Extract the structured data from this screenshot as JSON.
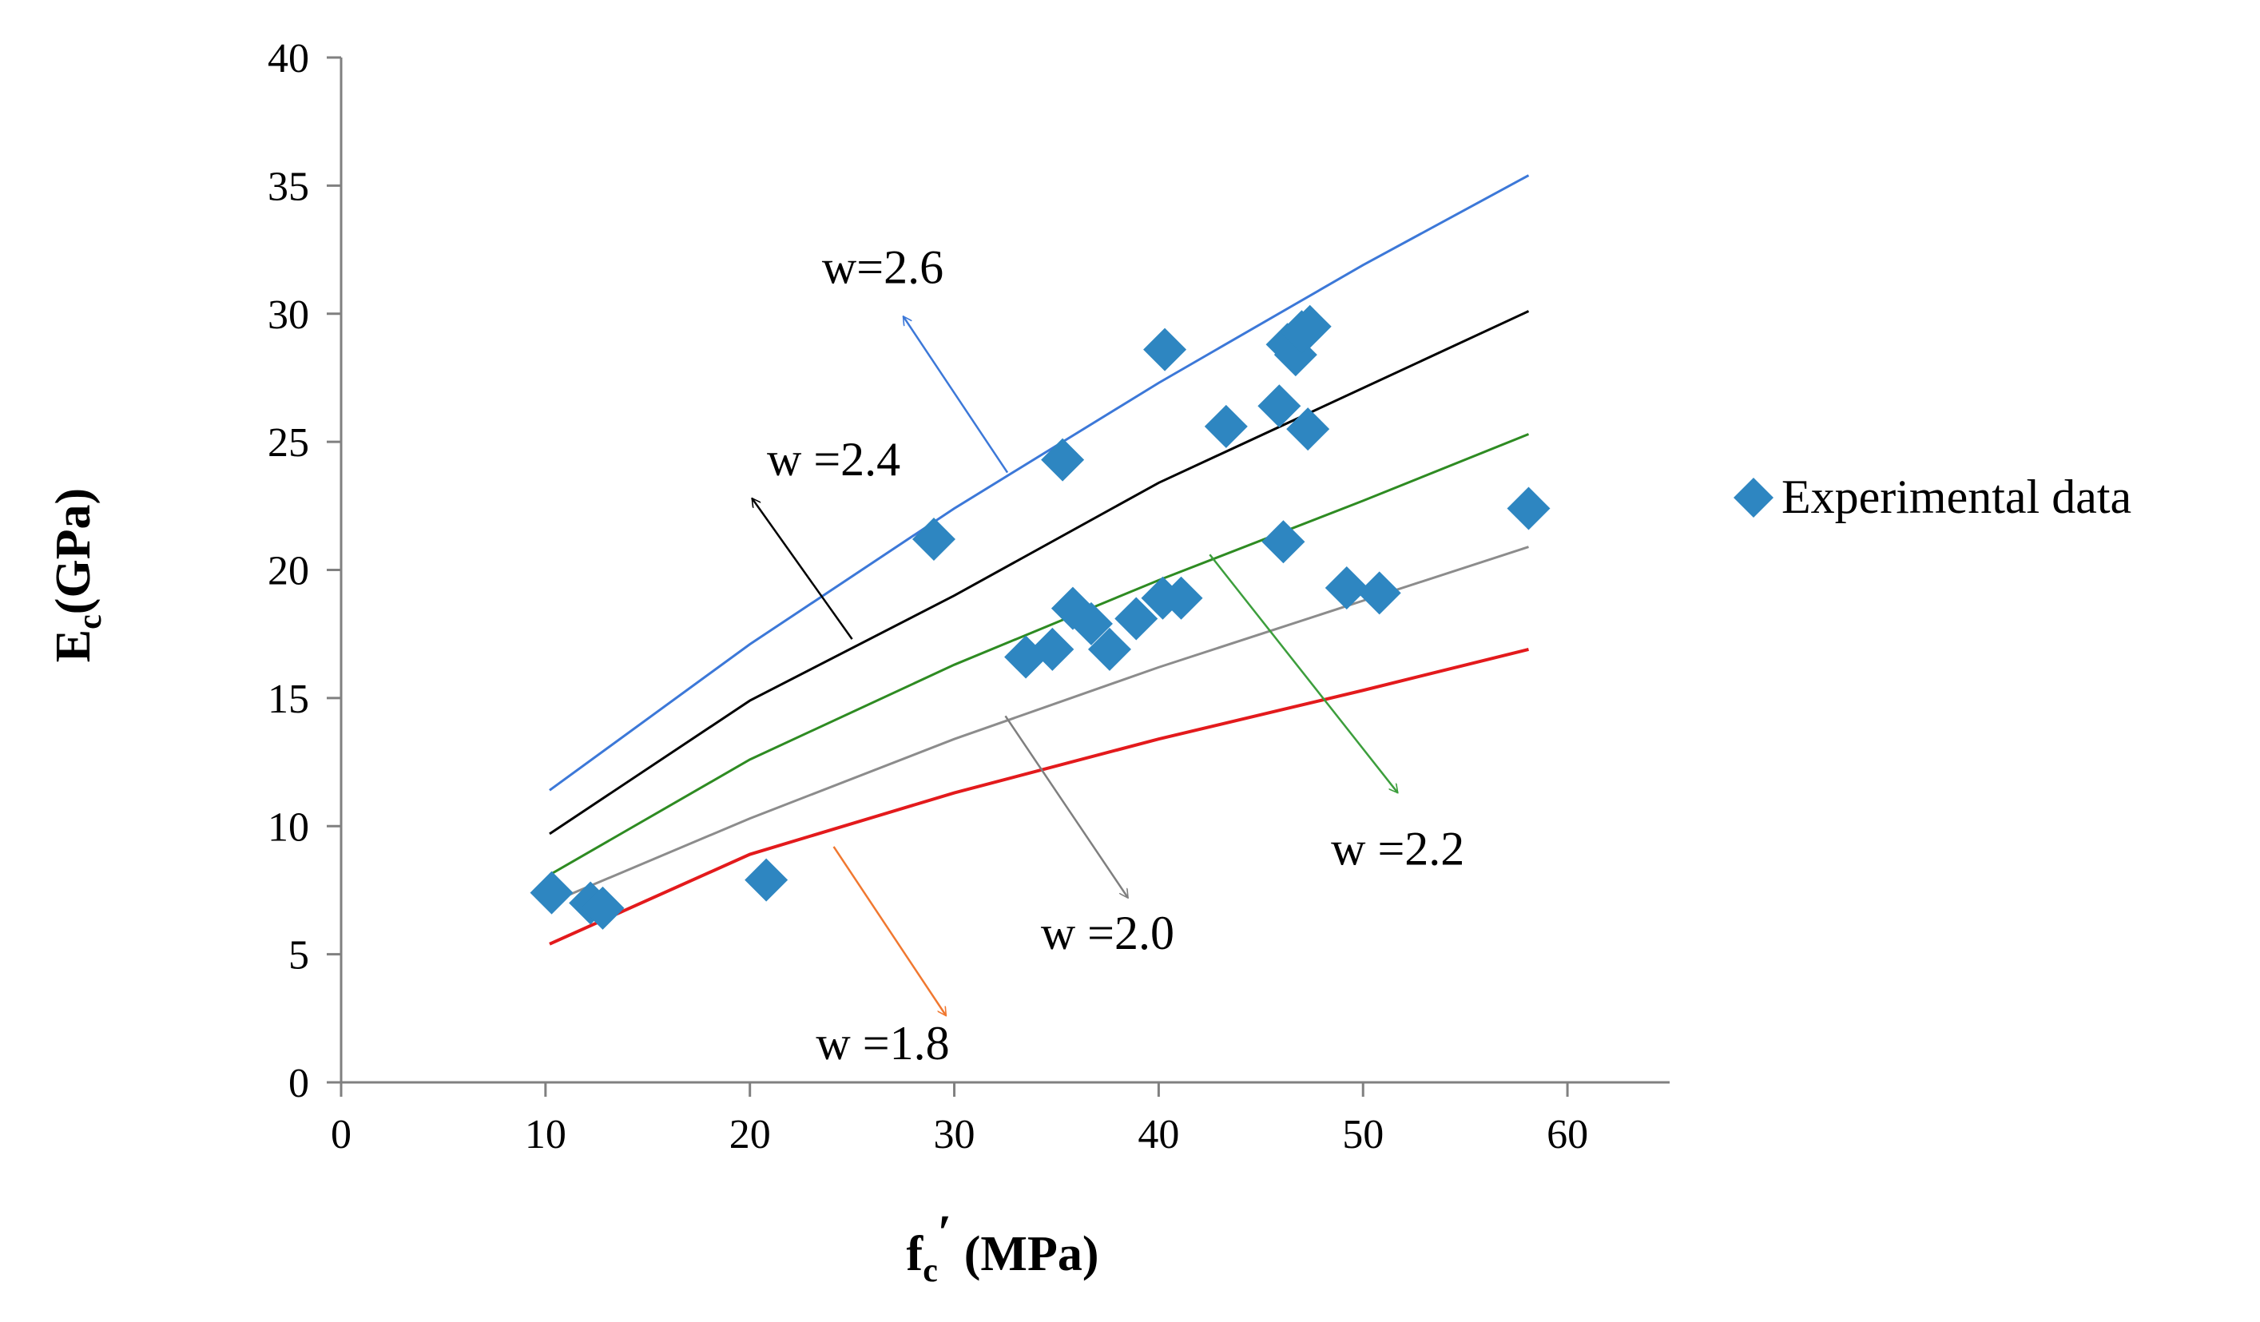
{
  "chart_data": {
    "type": "scatter",
    "title": "",
    "xlabel": {
      "main": "f",
      "sub": "c",
      "prime": "′",
      "rest": " (MPa)"
    },
    "ylabel": {
      "main": "E",
      "sub": "c",
      "rest": "(GPa)"
    },
    "xlim": [
      0,
      65
    ],
    "ylim": [
      0,
      40
    ],
    "xticks": [
      0,
      10,
      20,
      30,
      40,
      50,
      60
    ],
    "yticks": [
      0,
      5,
      10,
      15,
      20,
      25,
      30,
      35,
      40
    ],
    "grid": false,
    "legend": {
      "position": "right",
      "entries": [
        "Experimental data"
      ]
    },
    "series": [
      {
        "name": "Experimental data",
        "kind": "scatter",
        "marker": "diamond",
        "color": "#2E86C1",
        "points": [
          [
            10.3,
            7.4
          ],
          [
            12.2,
            7.0
          ],
          [
            12.8,
            6.8
          ],
          [
            20.8,
            7.9
          ],
          [
            29.0,
            21.2
          ],
          [
            33.5,
            16.6
          ],
          [
            34.8,
            16.9
          ],
          [
            35.3,
            24.3
          ],
          [
            35.8,
            18.5
          ],
          [
            36.7,
            17.9
          ],
          [
            37.6,
            16.9
          ],
          [
            38.9,
            18.1
          ],
          [
            40.2,
            18.9
          ],
          [
            40.3,
            28.6
          ],
          [
            41.1,
            18.9
          ],
          [
            43.3,
            25.6
          ],
          [
            45.9,
            26.4
          ],
          [
            46.1,
            21.1
          ],
          [
            46.3,
            28.8
          ],
          [
            46.7,
            28.4
          ],
          [
            47.0,
            29.3
          ],
          [
            47.3,
            25.5
          ],
          [
            47.4,
            29.5
          ],
          [
            49.2,
            19.3
          ],
          [
            50.8,
            19.1
          ],
          [
            58.1,
            22.4
          ]
        ]
      },
      {
        "name": "w =1.8",
        "kind": "line",
        "color": "#E31A1C",
        "x": [
          10.2,
          20,
          30,
          40,
          50,
          58.1
        ],
        "y": [
          5.4,
          8.9,
          11.3,
          13.4,
          15.3,
          16.9
        ]
      },
      {
        "name": "w =2.0",
        "kind": "line",
        "color": "#8C8C8C",
        "x": [
          10.2,
          20,
          30,
          40,
          50,
          58.1
        ],
        "y": [
          7.0,
          10.3,
          13.4,
          16.2,
          18.8,
          20.9
        ]
      },
      {
        "name": "w =2.2",
        "kind": "line",
        "color": "#2E8B22",
        "x": [
          10.2,
          20,
          30,
          40,
          50,
          58.1
        ],
        "y": [
          8.1,
          12.6,
          16.3,
          19.6,
          22.7,
          25.3
        ]
      },
      {
        "name": "w =2.4",
        "kind": "line",
        "color": "#000000",
        "x": [
          10.2,
          20,
          30,
          40,
          50,
          58.1
        ],
        "y": [
          9.7,
          14.9,
          19.0,
          23.4,
          27.1,
          30.1
        ]
      },
      {
        "name": "w=2.6",
        "kind": "line",
        "color": "#3C78D8",
        "x": [
          10.2,
          20,
          30,
          40,
          50,
          58.1
        ],
        "y": [
          11.4,
          17.1,
          22.4,
          27.3,
          31.9,
          35.4
        ]
      }
    ],
    "annotations": [
      {
        "text": "w=2.6",
        "label_at": [
          26.5,
          31.2
        ],
        "arrow_from": [
          32.6,
          23.8
        ],
        "arrow_to": [
          27.5,
          29.9
        ],
        "color": "#3C78D8"
      },
      {
        "text": "w =2.4",
        "label_at": [
          24.1,
          23.7
        ],
        "arrow_from": [
          25.0,
          17.3
        ],
        "arrow_to": [
          20.1,
          22.8
        ],
        "color": "#000000"
      },
      {
        "text": "w =2.2",
        "label_at": [
          51.7,
          8.5
        ],
        "arrow_from": [
          42.5,
          20.6
        ],
        "arrow_to": [
          51.7,
          11.3
        ],
        "color": "#3C9E3C"
      },
      {
        "text": "w =2.0",
        "label_at": [
          37.5,
          5.2
        ],
        "arrow_from": [
          32.5,
          14.3
        ],
        "arrow_to": [
          38.5,
          7.2
        ],
        "color": "#7F7F7F"
      },
      {
        "text": "w =1.8",
        "label_at": [
          26.5,
          0.9
        ],
        "arrow_from": [
          24.1,
          9.2
        ],
        "arrow_to": [
          29.6,
          2.6
        ],
        "color": "#F07830"
      }
    ]
  }
}
